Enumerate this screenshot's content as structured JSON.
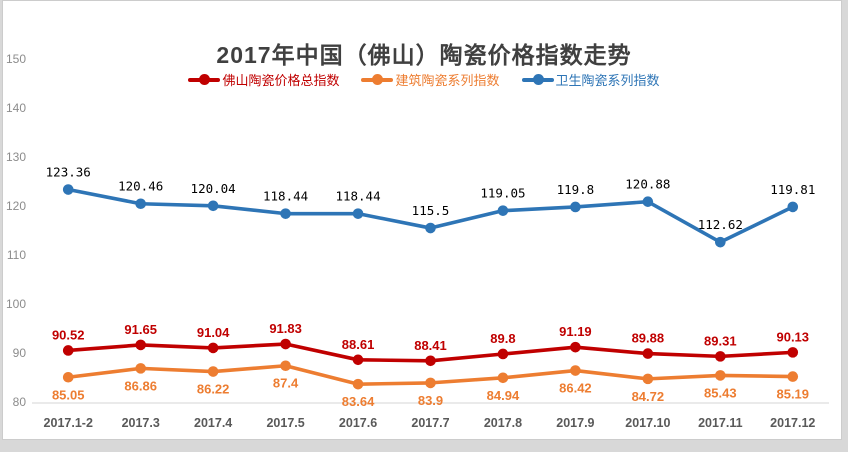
{
  "title": "2017年中国（佛山）陶瓷价格指数走势",
  "legend": {
    "items": [
      {
        "id": "foshan-total",
        "label": "佛山陶瓷价格总指数",
        "color": "#c00000"
      },
      {
        "id": "building",
        "label": "建筑陶瓷系列指数",
        "color": "#ed7d31"
      },
      {
        "id": "sanitary",
        "label": "卫生陶瓷系列指数",
        "color": "#2e75b6"
      }
    ]
  },
  "colors": {
    "background": "#d8d8d8",
    "chart_background": "#ffffff",
    "chart_border": "#cccccc",
    "axis_line": "#d4d4d4",
    "title_text": "#404040",
    "x_tick_text": "#595959",
    "y_tick_text": "#8c8c8c",
    "series_red": "#c00000",
    "series_orange": "#ed7d31",
    "series_blue": "#2e75b6"
  },
  "chart_data": {
    "type": "line",
    "title": "2017年中国（佛山）陶瓷价格指数走势",
    "categories": [
      "2017.1-2",
      "2017.3",
      "2017.4",
      "2017.5",
      "2017.6",
      "2017.7",
      "2017.8",
      "2017.9",
      "2017.10",
      "2017.11",
      "2017.12"
    ],
    "series": [
      {
        "id": "foshan-total",
        "name": "佛山陶瓷价格总指数",
        "color": "#c00000",
        "label_color": "#c00000",
        "label_position": "above",
        "label_style": "bold",
        "values": [
          90.52,
          91.65,
          91.04,
          91.83,
          88.61,
          88.41,
          89.8,
          91.19,
          89.88,
          89.31,
          90.13
        ]
      },
      {
        "id": "building",
        "name": "建筑陶瓷系列指数",
        "color": "#ed7d31",
        "label_color": "#ed7d31",
        "label_position": "below",
        "label_style": "bold",
        "values": [
          85.05,
          86.86,
          86.22,
          87.4,
          83.64,
          83.9,
          84.94,
          86.42,
          84.72,
          85.43,
          85.19
        ]
      },
      {
        "id": "sanitary",
        "name": "卫生陶瓷系列指数",
        "color": "#2e75b6",
        "label_color": "#000000",
        "label_position": "above",
        "label_style": "mono",
        "values": [
          123.36,
          120.46,
          120.04,
          118.44,
          118.44,
          115.5,
          119.05,
          119.8,
          120.88,
          112.62,
          119.81
        ]
      }
    ],
    "ylim": [
      80,
      150
    ],
    "ytick_step": 10,
    "yticks": [
      80,
      90,
      100,
      110,
      120,
      130,
      140,
      150
    ],
    "grid": false,
    "legend_position": "top"
  }
}
